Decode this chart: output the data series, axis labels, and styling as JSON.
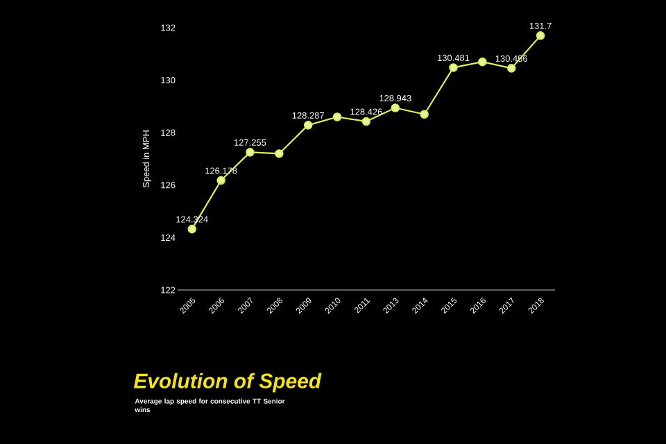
{
  "chart_data": {
    "type": "line",
    "title": "Evolution of Speed",
    "subtitle": "Average lap speed for consecutive TT Senior wins",
    "ylabel": "Speed in MPH",
    "categories": [
      "2005",
      "2006",
      "2007",
      "2008",
      "2009",
      "2010",
      "2011",
      "2013",
      "2014",
      "2015",
      "2016",
      "2017",
      "2018"
    ],
    "values": [
      124.324,
      126.178,
      127.255,
      127.2,
      128.287,
      128.6,
      128.426,
      128.943,
      128.7,
      130.481,
      130.7,
      130.456,
      131.7
    ],
    "value_labels": [
      "124.324",
      "126.178",
      "127.255",
      null,
      "128.287",
      null,
      "128.426",
      "128.943",
      null,
      "130.481",
      null,
      "130.456",
      "131.7"
    ],
    "color": "#d8f05c",
    "marker": "circle",
    "ylim": [
      122,
      132
    ],
    "yticks": [
      122,
      124,
      126,
      128,
      130,
      132
    ]
  }
}
